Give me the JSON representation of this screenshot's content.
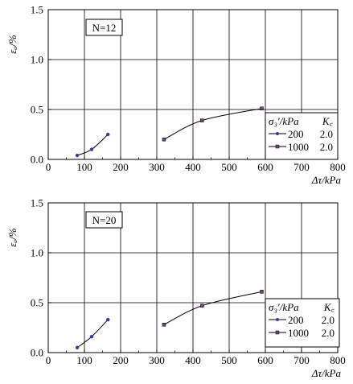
{
  "chart_data": [
    {
      "type": "line",
      "annotation": "N=12",
      "xlabel": "Δτ/kPa",
      "ylabel": "εₐ/%",
      "xlim": [
        0,
        800
      ],
      "ylim": [
        0,
        1.5
      ],
      "xticks": [
        "0",
        "100",
        "200",
        "300",
        "400",
        "500",
        "600",
        "700",
        "800"
      ],
      "yticks": [
        "0.0",
        "0.5",
        "1.0",
        "1.5"
      ],
      "grid": true,
      "legend_placement": "right",
      "legend_header": {
        "col1": "σ₃′/kPa",
        "col2": "K꜀"
      },
      "series": [
        {
          "name": "200",
          "kc": "2.0",
          "marker": "dot",
          "x": [
            80,
            120,
            165
          ],
          "y": [
            0.04,
            0.1,
            0.25
          ]
        },
        {
          "name": "1000",
          "kc": "2.0",
          "marker": "square",
          "x": [
            320,
            425,
            590
          ],
          "y": [
            0.2,
            0.39,
            0.51
          ]
        }
      ]
    },
    {
      "type": "line",
      "annotation": "N=20",
      "xlabel": "Δτ/kPa",
      "ylabel": "εₐ/%",
      "xlim": [
        0,
        800
      ],
      "ylim": [
        0,
        1.5
      ],
      "xticks": [
        "0",
        "100",
        "200",
        "300",
        "400",
        "500",
        "600",
        "700",
        "800"
      ],
      "yticks": [
        "0.0",
        "0.5",
        "1.0",
        "1.5"
      ],
      "grid": true,
      "legend_placement": "right",
      "legend_header": {
        "col1": "σ₃′/kPa",
        "col2": "K꜀"
      },
      "series": [
        {
          "name": "200",
          "kc": "2.0",
          "marker": "dot",
          "x": [
            80,
            120,
            165
          ],
          "y": [
            0.05,
            0.16,
            0.33
          ]
        },
        {
          "name": "1000",
          "kc": "2.0",
          "marker": "square",
          "x": [
            320,
            425,
            590
          ],
          "y": [
            0.28,
            0.47,
            0.61
          ]
        }
      ]
    }
  ]
}
